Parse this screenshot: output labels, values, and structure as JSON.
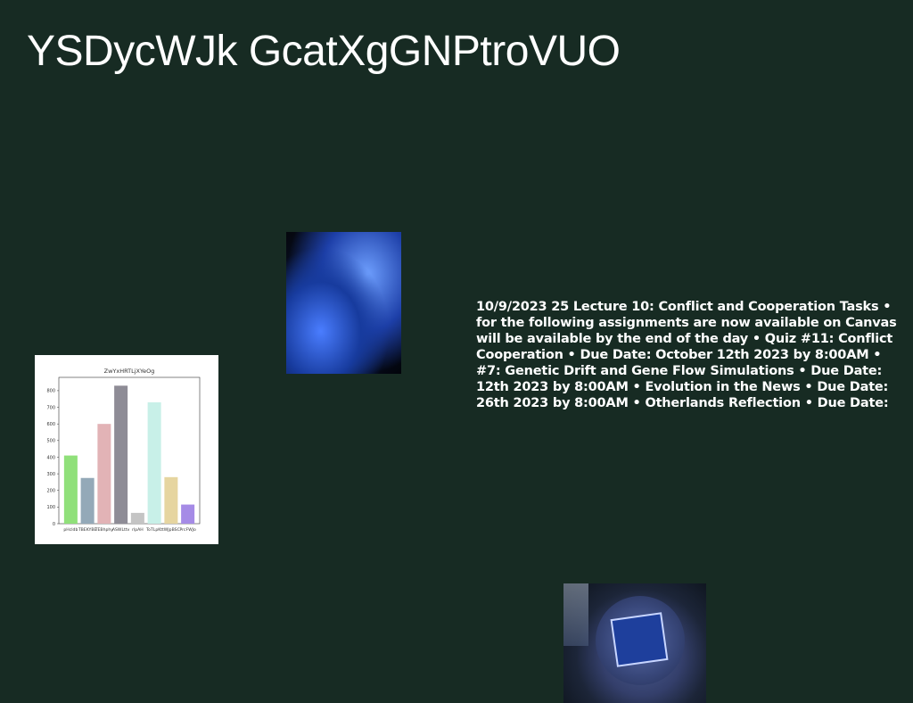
{
  "page": {
    "title": "YSDycWJk GcatXgGNPtroVUO",
    "body_text": "10/9/2023 25 Lecture 10: Conflict and Cooperation Tasks •\nfor the following assignments are now available on Canvas\nwill be available by the end of the day • Quiz #11: Conflict\nCooperation • Due Date: October 12th 2023 by 8:00AM •\n#7: Genetic Drift and Gene Flow Simulations • Due Date:\n12th 2023 by 8:00AM • Evolution in the News • Due Date:\n26th 2023 by 8:00AM • Otherlands Reflection • Due Date:"
  },
  "chart_data": {
    "type": "bar",
    "title": "ZwYxHRTLjXYeOg",
    "categories": [
      "pHcldb",
      "TBEKYBE",
      "TEBhphy",
      "ASWLttv",
      "rlpAH",
      "ToTLpKt",
      "tWJpBSC",
      "PrcFWJo"
    ],
    "values": [
      410,
      275,
      600,
      830,
      65,
      730,
      280,
      115
    ],
    "colors": [
      "#90e07a",
      "#94a9b8",
      "#e2b3b6",
      "#8e8c96",
      "#c4c4c4",
      "#c8f0e8",
      "#e6d5a0",
      "#a58be6"
    ],
    "ylim": [
      0,
      880
    ],
    "yticks": [
      0,
      100,
      200,
      300,
      400,
      500,
      600,
      700,
      800
    ]
  }
}
